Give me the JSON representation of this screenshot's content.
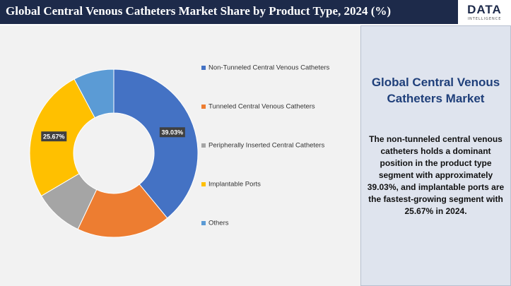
{
  "chart_data": {
    "type": "donut",
    "title": "Global Central Venous Catheters Market Share by Product Type, 2024 (%)",
    "categories": [
      "Non-Tunneled Central Venous Catheters",
      "Tunneled Central Venous Catheters",
      "Peripherally Inserted Central Catheters",
      "Implantable Ports",
      "Others"
    ],
    "values": [
      39.03,
      18,
      9.5,
      25.67,
      7.8
    ],
    "value_labels": [
      "39.03%",
      null,
      null,
      "25.67%",
      null
    ],
    "colors": [
      "#4472c4",
      "#ed7d31",
      "#a5a5a5",
      "#ffc000",
      "#5b9bd5"
    ],
    "legend": "right"
  },
  "logo": {
    "text": "DATA",
    "tagline": "INTELLIGENCE"
  },
  "panel": {
    "title": "Global Central Venous Catheters Market",
    "text": "The non-tunneled central venous catheters holds a dominant position in the product type segment with approximately 39.03%, and implantable ports are the fastest-growing segment with 25.67% in 2024."
  }
}
